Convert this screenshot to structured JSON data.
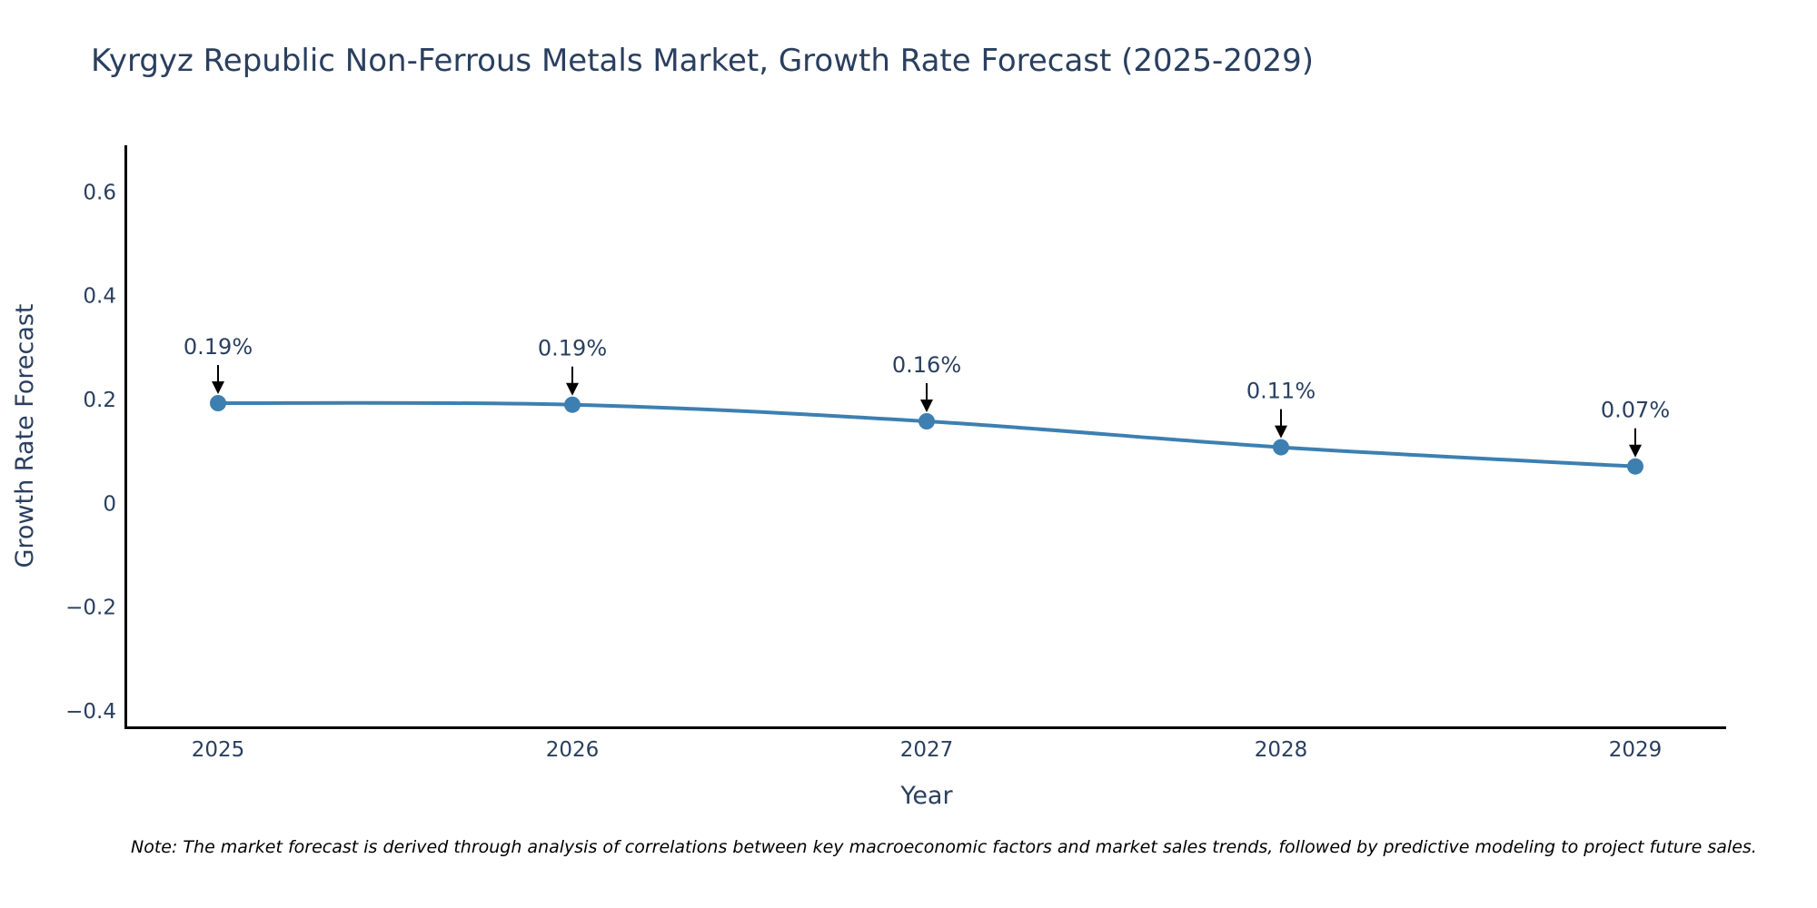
{
  "colors": {
    "line": "#3d7fb0",
    "marker": "#3d7fb0",
    "text": "#2a3f5f",
    "axis": "#000000",
    "arrow": "#000000"
  },
  "chart_data": {
    "type": "line",
    "title": "Kyrgyz Republic Non-Ferrous Metals Market, Growth Rate Forecast (2025-2029)",
    "xlabel": "Year",
    "ylabel": "Growth Rate Forecast",
    "categories": [
      "2025",
      "2026",
      "2027",
      "2028",
      "2029"
    ],
    "values": [
      0.193,
      0.19,
      0.158,
      0.108,
      0.071
    ],
    "labels": [
      "0.19%",
      "0.19%",
      "0.16%",
      "0.11%",
      "0.07%"
    ],
    "ylim": [
      -0.43,
      0.69
    ],
    "yticks": [
      -0.4,
      -0.2,
      0,
      0.2,
      0.4,
      0.6
    ],
    "ytick_labels": [
      "−0.4",
      "−0.2",
      "0",
      "0.2",
      "0.4",
      "0.6"
    ],
    "grid": false,
    "legend": "none"
  },
  "note": "Note: The market forecast is derived through analysis of correlations between key macroeconomic factors and market sales trends, followed by predictive modeling to project future sales."
}
